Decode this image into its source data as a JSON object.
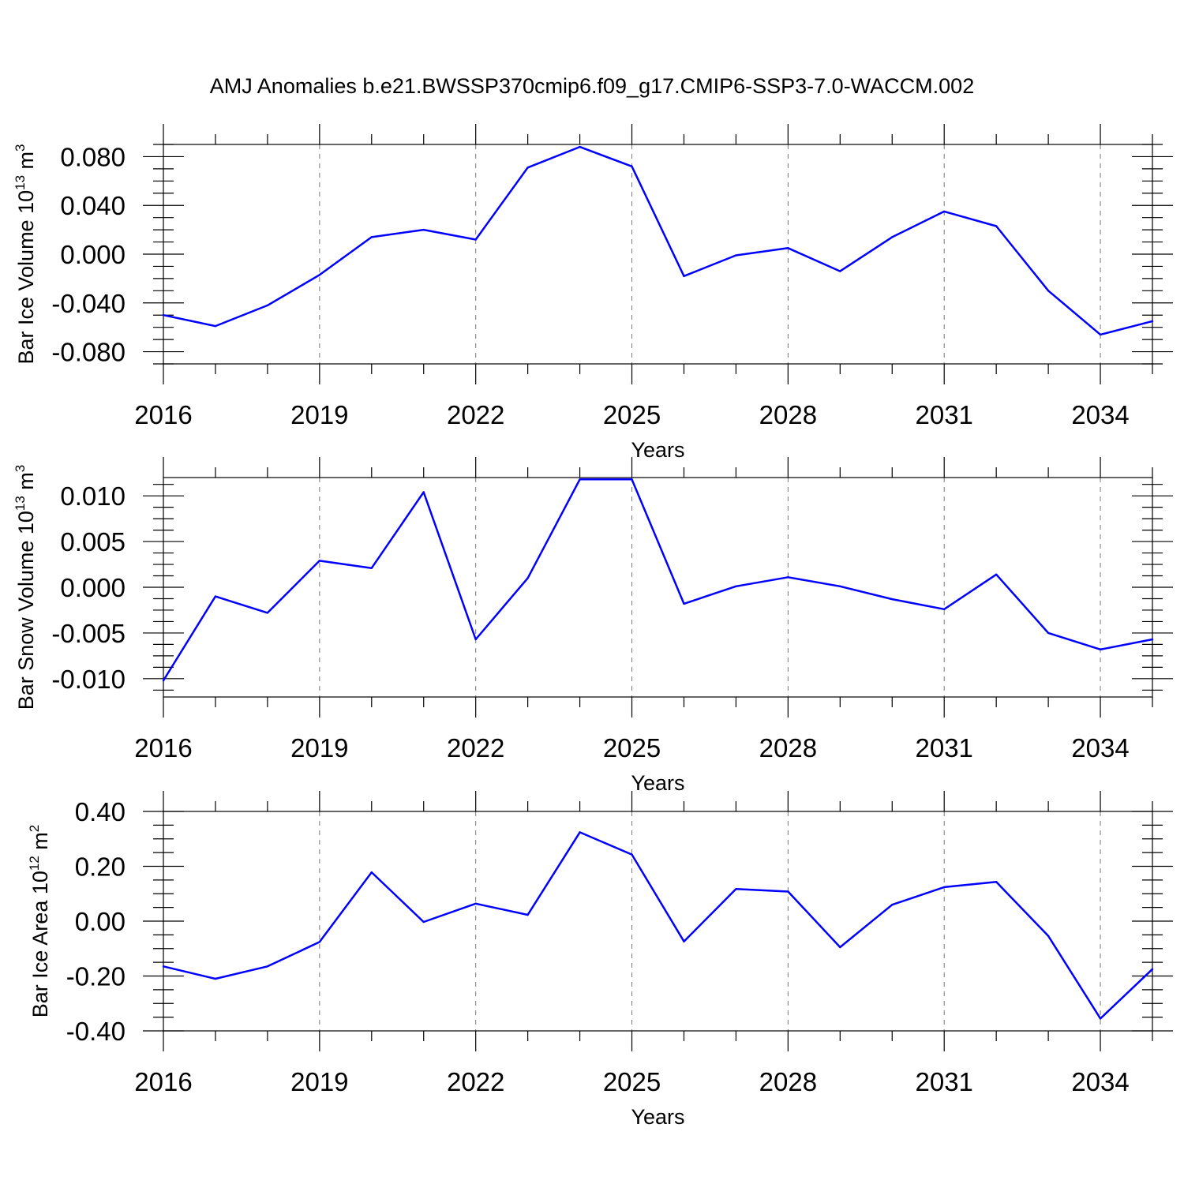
{
  "chart_data": [
    {
      "type": "line",
      "title": "AMJ Anomalies b.e21.BWSSP370cmip6.f09_g17.CMIP6-SSP3-7.0-WACCM.002",
      "xlabel": "Years",
      "ylabel": {
        "main": "Bar Ice Volume 10",
        "sup": "13",
        "tail": " m",
        "tail_sup": "3"
      },
      "xlim": [
        2016,
        2035
      ],
      "ylim": [
        -0.09,
        0.09
      ],
      "x_ticks": [
        2016,
        2019,
        2022,
        2025,
        2028,
        2031,
        2034
      ],
      "x_tick_labels": [
        "2016",
        "2019",
        "2022",
        "2025",
        "2028",
        "2031",
        "2034"
      ],
      "y_ticks": [
        -0.08,
        -0.04,
        0.0,
        0.04,
        0.08
      ],
      "y_tick_labels": [
        "-0.080",
        "-0.040",
        "0.000",
        "0.040",
        "0.080"
      ],
      "grid": "vertical dashed at major x ticks",
      "color": "#0000ff",
      "x": [
        2016,
        2017,
        2018,
        2019,
        2020,
        2021,
        2022,
        2023,
        2024,
        2025,
        2026,
        2027,
        2028,
        2029,
        2030,
        2031,
        2032,
        2033,
        2034,
        2035
      ],
      "values": [
        -0.05,
        -0.059,
        -0.042,
        -0.017,
        0.014,
        0.02,
        0.012,
        0.071,
        0.088,
        0.072,
        -0.018,
        -0.001,
        0.005,
        -0.014,
        0.014,
        0.035,
        0.023,
        -0.03,
        -0.066,
        -0.055
      ]
    },
    {
      "type": "line",
      "xlabel": "Years",
      "ylabel": {
        "main": "Bar Snow Volume 10",
        "sup": "13",
        "tail": " m",
        "tail_sup": "3"
      },
      "xlim": [
        2016,
        2035
      ],
      "ylim": [
        -0.012,
        0.012
      ],
      "x_ticks": [
        2016,
        2019,
        2022,
        2025,
        2028,
        2031,
        2034
      ],
      "x_tick_labels": [
        "2016",
        "2019",
        "2022",
        "2025",
        "2028",
        "2031",
        "2034"
      ],
      "y_ticks": [
        -0.01,
        -0.005,
        0.0,
        0.005,
        0.01
      ],
      "y_tick_labels": [
        "-0.010",
        "-0.005",
        "0.000",
        "0.005",
        "0.010"
      ],
      "grid": "vertical dashed at major x ticks",
      "color": "#0000ff",
      "x": [
        2016,
        2017,
        2018,
        2019,
        2020,
        2021,
        2022,
        2023,
        2024,
        2025,
        2026,
        2027,
        2028,
        2029,
        2030,
        2031,
        2032,
        2033,
        2034,
        2035
      ],
      "values": [
        -0.0102,
        -0.001,
        -0.0028,
        0.0029,
        0.0021,
        0.0104,
        -0.0057,
        0.001,
        0.0118,
        0.0118,
        -0.0018,
        0.0001,
        0.0011,
        0.0001,
        -0.0013,
        -0.0024,
        0.0014,
        -0.005,
        -0.0068,
        -0.0057
      ]
    },
    {
      "type": "line",
      "xlabel": "Years",
      "ylabel": {
        "main": "Bar Ice Area 10",
        "sup": "12",
        "tail": " m",
        "tail_sup": "2"
      },
      "xlim": [
        2016,
        2035
      ],
      "ylim": [
        -0.4,
        0.4
      ],
      "x_ticks": [
        2016,
        2019,
        2022,
        2025,
        2028,
        2031,
        2034
      ],
      "x_tick_labels": [
        "2016",
        "2019",
        "2022",
        "2025",
        "2028",
        "2031",
        "2034"
      ],
      "y_ticks": [
        -0.4,
        -0.2,
        0.0,
        0.2,
        0.4
      ],
      "y_tick_labels": [
        "-0.40",
        "-0.20",
        "0.00",
        "0.20",
        "0.40"
      ],
      "grid": "vertical dashed at major x ticks",
      "color": "#0000ff",
      "x": [
        2016,
        2017,
        2018,
        2019,
        2020,
        2021,
        2022,
        2023,
        2024,
        2025,
        2026,
        2027,
        2028,
        2029,
        2030,
        2031,
        2032,
        2033,
        2034,
        2035
      ],
      "values": [
        -0.165,
        -0.21,
        -0.165,
        -0.076,
        0.178,
        -0.003,
        0.064,
        0.023,
        0.324,
        0.243,
        -0.074,
        0.117,
        0.108,
        -0.095,
        0.06,
        0.124,
        0.143,
        -0.054,
        -0.355,
        -0.175
      ]
    }
  ]
}
